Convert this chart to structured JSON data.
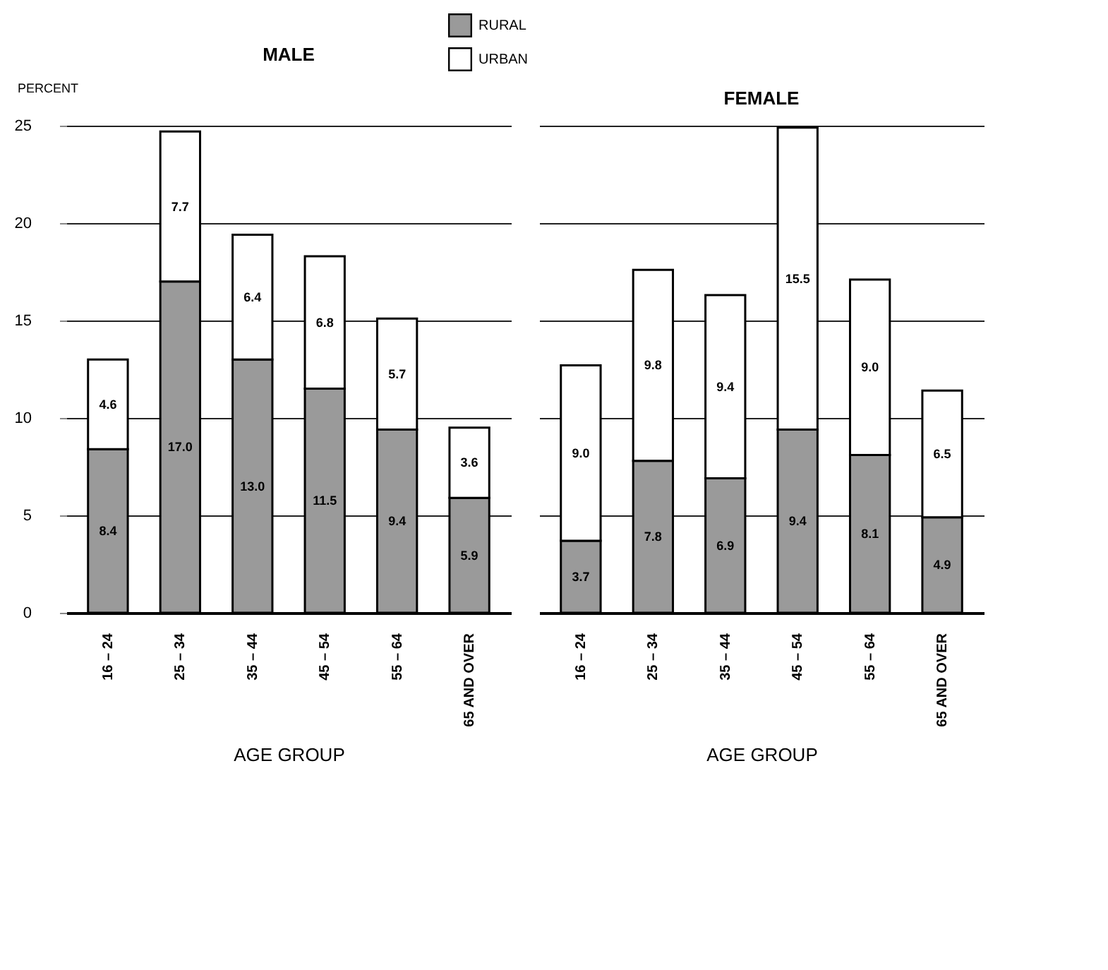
{
  "chart_data": [
    {
      "type": "bar",
      "title": "MALE",
      "ylabel": "PERCENT",
      "xlabel": "AGE GROUP",
      "categories": [
        "16 – 24",
        "25 – 34",
        "35 – 44",
        "45 – 54",
        "55 – 64",
        "65 AND OVER"
      ],
      "stacked": true,
      "series": [
        {
          "name": "RURAL",
          "color": "#9a9a9a",
          "values": [
            8.4,
            17.0,
            13.0,
            11.5,
            9.4,
            5.9
          ],
          "value_labels": [
            "8.4",
            "17.0",
            "13.0",
            "11.5",
            "9.4",
            "5.9"
          ]
        },
        {
          "name": "URBAN",
          "color": "#ffffff",
          "values": [
            4.6,
            7.7,
            6.4,
            6.8,
            5.7,
            3.6
          ],
          "value_labels": [
            "4.6",
            "7.7",
            "6.4",
            "6.8",
            "5.7",
            "3.6"
          ]
        }
      ],
      "ylim": [
        0,
        25
      ],
      "yticks": [
        0,
        5,
        10,
        15,
        20,
        25
      ],
      "grid": "y",
      "legend": "top"
    },
    {
      "type": "bar",
      "title": "FEMALE",
      "xlabel": "AGE GROUP",
      "categories": [
        "16 – 24",
        "25 – 34",
        "35 – 44",
        "45 – 54",
        "55 – 64",
        "65 AND OVER"
      ],
      "stacked": true,
      "series": [
        {
          "name": "RURAL",
          "color": "#9a9a9a",
          "values": [
            3.7,
            7.8,
            6.9,
            9.4,
            8.1,
            4.9
          ],
          "value_labels": [
            "3.7",
            "7.8",
            "6.9",
            "9.4",
            "8.1",
            "4.9"
          ]
        },
        {
          "name": "URBAN",
          "color": "#ffffff",
          "values": [
            9.0,
            9.8,
            9.4,
            15.5,
            9.0,
            6.5
          ],
          "value_labels": [
            "9.0",
            "9.8",
            "9.4",
            "15.5",
            "9.0",
            "6.5"
          ]
        }
      ],
      "ylim": [
        0,
        25
      ],
      "yticks": [
        0,
        5,
        10,
        15,
        20,
        25
      ],
      "grid": "y",
      "legend": "top",
      "tick_labels": "x"
    }
  ]
}
